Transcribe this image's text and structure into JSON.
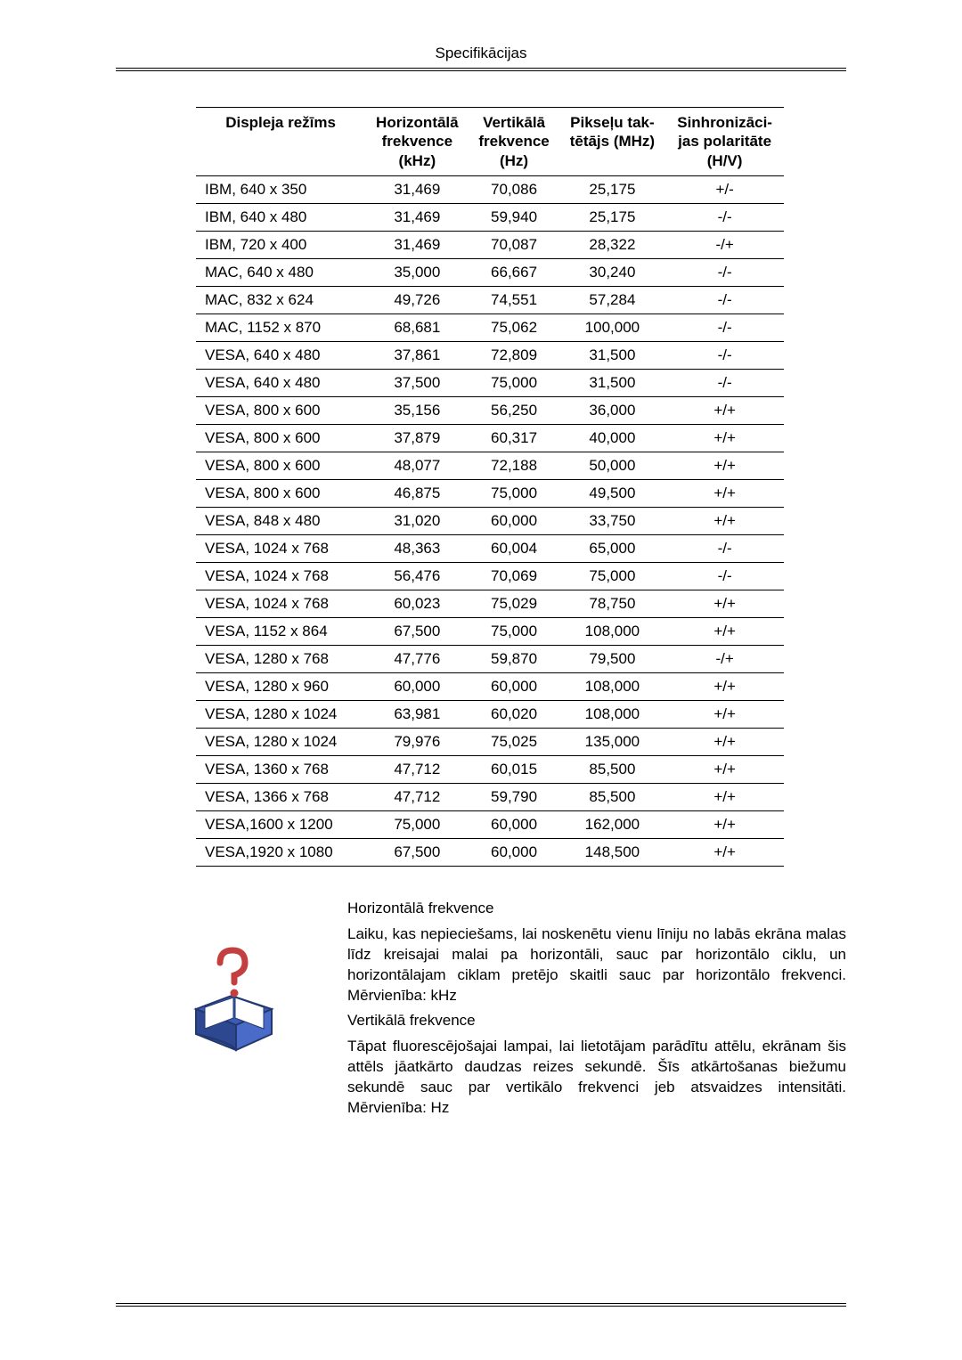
{
  "header": {
    "title": "Specifikācijas"
  },
  "table": {
    "columns": [
      "Displeja režīms",
      "Horizontālā frekvence (kHz)",
      "Vertikālā frekvence (Hz)",
      "Pikseļu taktētājs (MHz)",
      "Sinhronizācijas polaritāte (H/V)"
    ],
    "col_header_lines": [
      [
        "Displeja režīms"
      ],
      [
        "Horizontālā",
        "frekvence",
        "(kHz)"
      ],
      [
        "Vertikālā",
        "frekvence",
        "(Hz)"
      ],
      [
        "Pikseļu tak-",
        "tētājs (MHz)"
      ],
      [
        "Sinhronizāci-",
        "jas polaritāte",
        "(H/V)"
      ]
    ],
    "rows": [
      [
        "IBM, 640 x 350",
        "31,469",
        "70,086",
        "25,175",
        "+/-"
      ],
      [
        "IBM, 640 x 480",
        "31,469",
        "59,940",
        "25,175",
        "-/-"
      ],
      [
        "IBM, 720 x 400",
        "31,469",
        "70,087",
        "28,322",
        "-/+"
      ],
      [
        "MAC, 640 x 480",
        "35,000",
        "66,667",
        "30,240",
        "-/-"
      ],
      [
        "MAC, 832 x 624",
        "49,726",
        "74,551",
        "57,284",
        "-/-"
      ],
      [
        "MAC, 1152 x 870",
        "68,681",
        "75,062",
        "100,000",
        "-/-"
      ],
      [
        "VESA, 640 x 480",
        "37,861",
        "72,809",
        "31,500",
        "-/-"
      ],
      [
        "VESA, 640 x 480",
        "37,500",
        "75,000",
        "31,500",
        "-/-"
      ],
      [
        "VESA, 800 x 600",
        "35,156",
        "56,250",
        "36,000",
        "+/+"
      ],
      [
        "VESA, 800 x 600",
        "37,879",
        "60,317",
        "40,000",
        "+/+"
      ],
      [
        "VESA, 800 x 600",
        "48,077",
        "72,188",
        "50,000",
        "+/+"
      ],
      [
        "VESA, 800 x 600",
        "46,875",
        "75,000",
        "49,500",
        "+/+"
      ],
      [
        "VESA, 848 x 480",
        "31,020",
        "60,000",
        "33,750",
        "+/+"
      ],
      [
        "VESA, 1024 x 768",
        "48,363",
        "60,004",
        "65,000",
        "-/-"
      ],
      [
        "VESA, 1024 x 768",
        "56,476",
        "70,069",
        "75,000",
        "-/-"
      ],
      [
        "VESA, 1024 x 768",
        "60,023",
        "75,029",
        "78,750",
        "+/+"
      ],
      [
        "VESA, 1152 x 864",
        "67,500",
        "75,000",
        "108,000",
        "+/+"
      ],
      [
        "VESA, 1280 x 768",
        "47,776",
        "59,870",
        "79,500",
        "-/+"
      ],
      [
        "VESA, 1280 x 960",
        "60,000",
        "60,000",
        "108,000",
        "+/+"
      ],
      [
        "VESA, 1280 x 1024",
        "63,981",
        "60,020",
        "108,000",
        "+/+"
      ],
      [
        "VESA, 1280 x 1024",
        "79,976",
        "75,025",
        "135,000",
        "+/+"
      ],
      [
        "VESA, 1360 x 768",
        "47,712",
        "60,015",
        "85,500",
        "+/+"
      ],
      [
        "VESA, 1366 x 768",
        "47,712",
        "59,790",
        "85,500",
        "+/+"
      ],
      [
        "VESA,1600 x 1200",
        "75,000",
        "60,000",
        "162,000",
        "+/+"
      ],
      [
        "VESA,1920 x 1080",
        "67,500",
        "60,000",
        "148,500",
        "+/+"
      ]
    ],
    "styling": {
      "font_size": 17,
      "header_border_color": "#000000",
      "row_border_color": "#000000",
      "background_color": "#ffffff",
      "text_color": "#000000",
      "col_align": [
        "left",
        "center",
        "center",
        "center",
        "center"
      ]
    }
  },
  "notes": {
    "h_title": "Horizontālā frekvence",
    "h_body": "Laiku, kas nepieciešams, lai noskenētu vienu līniju no labās ekrāna malas līdz kreisajai malai pa horizontāli, sauc par horizontālo ciklu, un horizontālajam ciklam pretējo skaitli sauc par horizontālo frekvenci. Mērvienība: kHz",
    "v_title": "Vertikālā frekvence",
    "v_body": "Tāpat fluorescējošajai lampai, lai lietotājam parādītu attēlu, ekrānam šis attēls jāatkārto daudzas reizes sekundē. Šīs atkārtošanas biežumu sekundē sauc par vertikālo frekvenci jeb atsvaidzes intensitāti. Mērvienība: Hz",
    "icon_colors": {
      "book": "#3b5bb5",
      "page": "#ffffff",
      "qmark": "#c44040"
    }
  }
}
